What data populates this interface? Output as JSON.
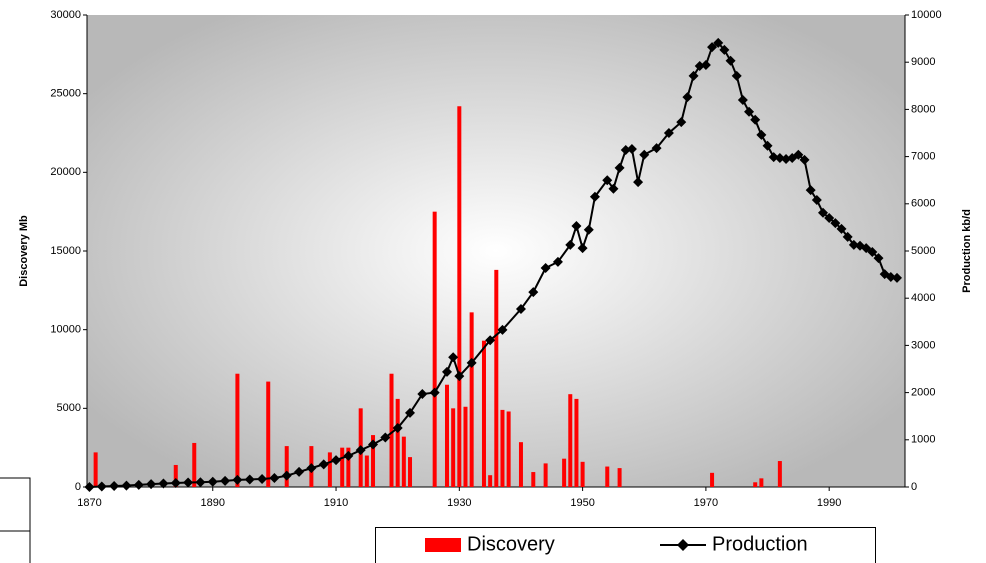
{
  "chart_data": {
    "type": "combo",
    "y_label": "Discovery Mb",
    "y2_label": "Production kb/d",
    "xlim": [
      1869.6,
      2002.3
    ],
    "xticks": [
      1870,
      1890,
      1910,
      1930,
      1950,
      1970,
      1990
    ],
    "ylim": [
      0,
      30000
    ],
    "yticks": [
      0,
      5000,
      10000,
      15000,
      20000,
      25000,
      30000
    ],
    "y2lim": [
      0,
      10000
    ],
    "y2ticks": [
      0,
      1000,
      2000,
      3000,
      4000,
      5000,
      6000,
      7000,
      8000,
      9000,
      10000
    ],
    "series": [
      {
        "name": "Discovery",
        "type": "bar",
        "color": "#ff0000",
        "x": [
          1871,
          1884,
          1887,
          1894,
          1899,
          1902,
          1906,
          1909,
          1911,
          1912,
          1914,
          1915,
          1916,
          1919,
          1920,
          1921,
          1922,
          1926,
          1928,
          1929,
          1930,
          1931,
          1932,
          1934,
          1935,
          1936,
          1937,
          1938,
          1940,
          1942,
          1944,
          1947,
          1948,
          1949,
          1950,
          1954,
          1956,
          1971,
          1978,
          1979,
          1982
        ],
        "values": [
          2200,
          1400,
          2800,
          7200,
          6700,
          2600,
          2600,
          2200,
          2500,
          2500,
          5000,
          2000,
          3300,
          7200,
          5600,
          3200,
          1900,
          17500,
          6500,
          5000,
          24200,
          5100,
          11100,
          9300,
          750,
          13800,
          4900,
          4800,
          2850,
          950,
          1500,
          1800,
          5900,
          5600,
          1600,
          1300,
          1200,
          900,
          300,
          550,
          1650
        ]
      },
      {
        "name": "Production",
        "type": "line",
        "axis": "y2",
        "color": "#000000",
        "x": [
          1870,
          1872,
          1874,
          1876,
          1878,
          1880,
          1882,
          1884,
          1886,
          1888,
          1890,
          1892,
          1894,
          1896,
          1898,
          1900,
          1902,
          1904,
          1906,
          1908,
          1910,
          1912,
          1914,
          1916,
          1918,
          1920,
          1922,
          1924,
          1926,
          1928,
          1929,
          1930,
          1932,
          1935,
          1937,
          1940,
          1942,
          1944,
          1946,
          1948,
          1949,
          1950,
          1951,
          1952,
          1954,
          1955,
          1956,
          1957,
          1958,
          1959,
          1960,
          1962,
          1964,
          1966,
          1967,
          1968,
          1969,
          1970,
          1971,
          1972,
          1973,
          1974,
          1975,
          1976,
          1977,
          1978,
          1979,
          1980,
          1981,
          1982,
          1983,
          1984,
          1985,
          1986,
          1987,
          1988,
          1989,
          1990,
          1991,
          1992,
          1993,
          1994,
          1995,
          1996,
          1997,
          1998,
          1999,
          2000,
          2001
        ],
        "values": [
          0,
          10,
          20,
          30,
          45,
          60,
          75,
          85,
          95,
          100,
          110,
          130,
          150,
          160,
          170,
          190,
          240,
          320,
          400,
          480,
          570,
          660,
          780,
          900,
          1050,
          1250,
          1570,
          1970,
          2000,
          2440,
          2750,
          2350,
          2630,
          3110,
          3330,
          3770,
          4130,
          4640,
          4770,
          5130,
          5530,
          5060,
          5450,
          6150,
          6500,
          6320,
          6760,
          7140,
          7160,
          6460,
          7040,
          7180,
          7500,
          7730,
          8260,
          8710,
          8920,
          8940,
          9320,
          9410,
          9260,
          9030,
          8710,
          8200,
          7950,
          7780,
          7460,
          7230,
          6990,
          6970,
          6950,
          6970,
          7040,
          6930,
          6290,
          6080,
          5810,
          5700,
          5590,
          5470,
          5300,
          5130,
          5110,
          5060,
          4980,
          4850,
          4510,
          4450,
          4430
        ]
      }
    ]
  }
}
